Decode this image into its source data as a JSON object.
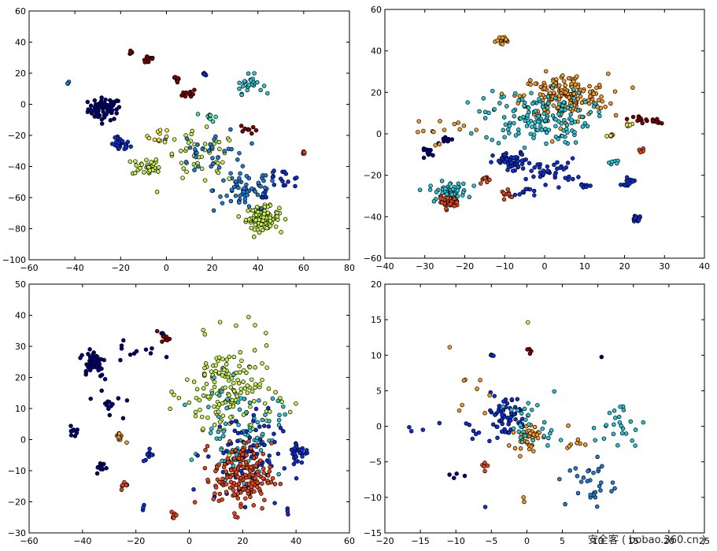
{
  "watermark": "安全客 ( bobao.360.cn )",
  "palette": {
    "navy": "#00007f",
    "blue": "#0c2fd8",
    "midblue": "#1f7cd8",
    "cyan": "#26c6d6",
    "teal": "#3fe8b0",
    "yellowgreen": "#c6f04a",
    "yellow": "#f6e93b",
    "orange": "#f59b22",
    "redorange": "#e6461a",
    "darkred": "#7f0000"
  },
  "chart_data": [
    {
      "type": "scatter",
      "name": "panel-top-left",
      "xlim": [
        -60,
        80
      ],
      "ylim": [
        -100,
        60
      ],
      "xticks": [
        -60,
        -40,
        -20,
        0,
        20,
        40,
        60,
        80
      ],
      "yticks": [
        -100,
        -80,
        -60,
        -40,
        -20,
        0,
        20,
        40,
        60
      ],
      "clusters": [
        {
          "x": -27,
          "y": -3,
          "spread": 6,
          "n": 70,
          "color": "navy"
        },
        {
          "x": -20,
          "y": -26,
          "spread": 3.5,
          "n": 30,
          "color": "blue"
        },
        {
          "x": -9,
          "y": -40,
          "spread": 5,
          "n": 30,
          "color": "yellowgreen"
        },
        {
          "x": -16,
          "y": 34,
          "spread": 1.5,
          "n": 6,
          "color": "darkred"
        },
        {
          "x": -8,
          "y": 29,
          "spread": 2.5,
          "n": 12,
          "color": "darkred"
        },
        {
          "x": 5,
          "y": 16,
          "spread": 2.5,
          "n": 8,
          "color": "darkred"
        },
        {
          "x": 10,
          "y": 7,
          "spread": 2.5,
          "n": 12,
          "color": "darkred"
        },
        {
          "x": 19,
          "y": -8,
          "spread": 2.5,
          "n": 10,
          "color": "teal"
        },
        {
          "x": 36,
          "y": 13,
          "spread": 5,
          "n": 25,
          "color": "cyan"
        },
        {
          "x": 36,
          "y": -16,
          "spread": 3,
          "n": 9,
          "color": "darkred"
        },
        {
          "x": 60,
          "y": -31,
          "spread": 1.2,
          "n": 5,
          "color": "redorange"
        },
        {
          "x": 42,
          "y": -73,
          "spread": 6,
          "n": 110,
          "color": "yellowgreen"
        },
        {
          "x": 35,
          "y": -55,
          "spread": 12,
          "n": 70,
          "color": "midblue"
        },
        {
          "x": 15,
          "y": -35,
          "spread": 14,
          "n": 50,
          "color": "yellowgreen"
        },
        {
          "x": 20,
          "y": -30,
          "spread": 12,
          "n": 30,
          "color": "midblue"
        },
        {
          "x": -3,
          "y": -20,
          "spread": 4,
          "n": 12,
          "color": "yellow"
        },
        {
          "x": -43,
          "y": 13,
          "spread": 1,
          "n": 3,
          "color": "midblue"
        },
        {
          "x": 17,
          "y": 20,
          "spread": 1.2,
          "n": 5,
          "color": "blue"
        },
        {
          "x": 50,
          "y": -50,
          "spread": 8,
          "n": 18,
          "color": "blue"
        }
      ]
    },
    {
      "type": "scatter",
      "name": "panel-top-right",
      "xlim": [
        -40,
        40
      ],
      "ylim": [
        -60,
        60
      ],
      "xticks": [
        -40,
        -30,
        -20,
        -10,
        0,
        10,
        20,
        30,
        40
      ],
      "yticks": [
        -60,
        -40,
        -20,
        0,
        20,
        40,
        60
      ],
      "clusters": [
        {
          "x": 5,
          "y": 18,
          "spread": 9,
          "n": 180,
          "color": "orange"
        },
        {
          "x": -2,
          "y": 8,
          "spread": 11,
          "n": 150,
          "color": "cyan"
        },
        {
          "x": -8,
          "y": -14,
          "spread": 4,
          "n": 60,
          "color": "blue"
        },
        {
          "x": 2,
          "y": -18,
          "spread": 5,
          "n": 35,
          "color": "blue"
        },
        {
          "x": -24,
          "y": -28,
          "spread": 4,
          "n": 60,
          "color": "cyan"
        },
        {
          "x": -24,
          "y": -33,
          "spread": 2,
          "n": 35,
          "color": "redorange"
        },
        {
          "x": -10,
          "y": 45,
          "spread": 1.8,
          "n": 18,
          "color": "orange"
        },
        {
          "x": -29,
          "y": -9,
          "spread": 1.5,
          "n": 12,
          "color": "navy"
        },
        {
          "x": -24,
          "y": -3,
          "spread": 1.5,
          "n": 10,
          "color": "navy"
        },
        {
          "x": 24,
          "y": 7,
          "spread": 1.5,
          "n": 10,
          "color": "darkred"
        },
        {
          "x": 27,
          "y": 6,
          "spread": 1.5,
          "n": 10,
          "color": "darkred"
        },
        {
          "x": 21,
          "y": -23,
          "spread": 1.5,
          "n": 14,
          "color": "blue"
        },
        {
          "x": 23,
          "y": -41,
          "spread": 1.2,
          "n": 12,
          "color": "blue"
        },
        {
          "x": -9,
          "y": -29,
          "spread": 1.5,
          "n": 10,
          "color": "redorange"
        },
        {
          "x": 10,
          "y": -25,
          "spread": 1.2,
          "n": 8,
          "color": "blue"
        },
        {
          "x": -15,
          "y": -22,
          "spread": 1.5,
          "n": 8,
          "color": "redorange"
        },
        {
          "x": 17,
          "y": -1,
          "spread": 1,
          "n": 6,
          "color": "yellow"
        },
        {
          "x": 21,
          "y": 4,
          "spread": 1,
          "n": 6,
          "color": "yellow"
        },
        {
          "x": -27,
          "y": 3,
          "spread": 6,
          "n": 14,
          "color": "orange"
        },
        {
          "x": 24,
          "y": -8,
          "spread": 1,
          "n": 5,
          "color": "redorange"
        },
        {
          "x": -5,
          "y": -28,
          "spread": 2,
          "n": 10,
          "color": "blue"
        },
        {
          "x": 17,
          "y": -14,
          "spread": 1.5,
          "n": 6,
          "color": "cyan"
        }
      ]
    },
    {
      "type": "scatter",
      "name": "panel-bottom-left",
      "xlim": [
        -60,
        60
      ],
      "ylim": [
        -30,
        50
      ],
      "xticks": [
        -60,
        -40,
        -20,
        0,
        20,
        40,
        60
      ],
      "yticks": [
        -30,
        -20,
        -10,
        0,
        10,
        20,
        30,
        40,
        50
      ],
      "clusters": [
        {
          "x": 15,
          "y": 15,
          "spread": 14,
          "n": 170,
          "color": "yellowgreen"
        },
        {
          "x": 20,
          "y": 2,
          "spread": 12,
          "n": 90,
          "color": "cyan"
        },
        {
          "x": 20,
          "y": -5,
          "spread": 12,
          "n": 80,
          "color": "blue"
        },
        {
          "x": 20,
          "y": -12,
          "spread": 9,
          "n": 170,
          "color": "redorange"
        },
        {
          "x": -36,
          "y": 25,
          "spread": 4,
          "n": 50,
          "color": "navy"
        },
        {
          "x": -43,
          "y": 3,
          "spread": 1.2,
          "n": 10,
          "color": "navy"
        },
        {
          "x": -33,
          "y": -9,
          "spread": 1.5,
          "n": 15,
          "color": "navy"
        },
        {
          "x": -26,
          "y": 1,
          "spread": 1.5,
          "n": 12,
          "color": "orange"
        },
        {
          "x": -24,
          "y": -15,
          "spread": 1.2,
          "n": 7,
          "color": "redorange"
        },
        {
          "x": -9,
          "y": 33,
          "spread": 1.5,
          "n": 10,
          "color": "darkred"
        },
        {
          "x": -6,
          "y": -24,
          "spread": 1.2,
          "n": 7,
          "color": "redorange"
        },
        {
          "x": -15,
          "y": -5,
          "spread": 2,
          "n": 10,
          "color": "blue"
        },
        {
          "x": 41,
          "y": -4,
          "spread": 3,
          "n": 30,
          "color": "blue"
        },
        {
          "x": -20,
          "y": 30,
          "spread": 7,
          "n": 12,
          "color": "navy"
        },
        {
          "x": -30,
          "y": 12,
          "spread": 5,
          "n": 14,
          "color": "navy"
        },
        {
          "x": 37,
          "y": -23,
          "spread": 1,
          "n": 3,
          "color": "blue"
        },
        {
          "x": -17,
          "y": -21,
          "spread": 1,
          "n": 3,
          "color": "blue"
        }
      ]
    },
    {
      "type": "scatter",
      "name": "panel-bottom-right",
      "xlim": [
        -20,
        25
      ],
      "ylim": [
        -15,
        20
      ],
      "xticks": [
        -20,
        -15,
        -10,
        -5,
        0,
        5,
        10,
        15,
        20,
        25
      ],
      "yticks": [
        -15,
        -10,
        -5,
        0,
        5,
        10,
        15,
        20
      ],
      "clusters": [
        {
          "x": -3,
          "y": 1.5,
          "spread": 2.5,
          "n": 60,
          "color": "blue"
        },
        {
          "x": 0,
          "y": -1.5,
          "spread": 1.5,
          "n": 40,
          "color": "orange"
        },
        {
          "x": 1,
          "y": 0,
          "spread": 3,
          "n": 30,
          "color": "cyan"
        },
        {
          "x": 13,
          "y": 0,
          "spread": 3,
          "n": 25,
          "color": "cyan"
        },
        {
          "x": 9,
          "y": -8,
          "spread": 3,
          "n": 30,
          "color": "midblue"
        },
        {
          "x": -5,
          "y": 10,
          "spread": 0.2,
          "n": 5,
          "color": "blue"
        },
        {
          "x": 0.5,
          "y": 10.5,
          "spread": 0.4,
          "n": 4,
          "color": "darkred"
        },
        {
          "x": -8,
          "y": 4,
          "spread": 2.5,
          "n": 8,
          "color": "orange"
        },
        {
          "x": -15,
          "y": 1,
          "spread": 2.5,
          "n": 4,
          "color": "blue"
        },
        {
          "x": -6,
          "y": -5.5,
          "spread": 0.6,
          "n": 5,
          "color": "redorange"
        },
        {
          "x": -10,
          "y": -7,
          "spread": 1,
          "n": 4,
          "color": "navy"
        },
        {
          "x": -11,
          "y": 11,
          "spread": 0.2,
          "n": 1,
          "color": "orange"
        },
        {
          "x": 0,
          "y": 14.7,
          "spread": 0.2,
          "n": 1,
          "color": "yellow"
        },
        {
          "x": 10.5,
          "y": 9.8,
          "spread": 0.2,
          "n": 1,
          "color": "navy"
        },
        {
          "x": -8,
          "y": -0.5,
          "spread": 1,
          "n": 6,
          "color": "blue"
        },
        {
          "x": -5.5,
          "y": -12,
          "spread": 0.3,
          "n": 1,
          "color": "blue"
        },
        {
          "x": -0.5,
          "y": -10.5,
          "spread": 0.6,
          "n": 2,
          "color": "orange"
        },
        {
          "x": 6,
          "y": -2,
          "spread": 2,
          "n": 8,
          "color": "orange"
        }
      ]
    }
  ]
}
